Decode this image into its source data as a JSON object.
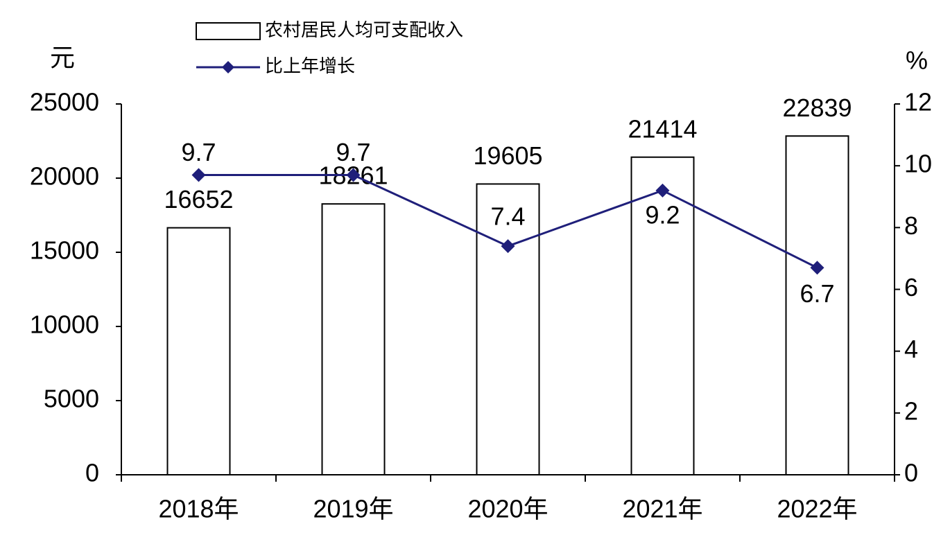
{
  "chart_data": {
    "type": "combo",
    "categories": [
      "2018年",
      "2019年",
      "2020年",
      "2021年",
      "2022年"
    ],
    "y_label": "元",
    "y2_label": "%",
    "ylim": [
      0,
      25000
    ],
    "yticks": [
      0,
      5000,
      10000,
      15000,
      20000,
      25000
    ],
    "y2lim": [
      0,
      12
    ],
    "y2ticks": [
      0,
      2,
      4,
      6,
      8,
      10,
      12
    ],
    "series": [
      {
        "name": "农村居民人均可支配收入",
        "type": "bar",
        "color": "#ffffff",
        "values": [
          16652,
          18261,
          19605,
          21414,
          22839
        ]
      },
      {
        "name": "比上年增长",
        "type": "line",
        "axis": "y2",
        "color": "#1f1f7a",
        "values": [
          9.7,
          9.7,
          7.4,
          9.2,
          6.7
        ]
      }
    ]
  }
}
